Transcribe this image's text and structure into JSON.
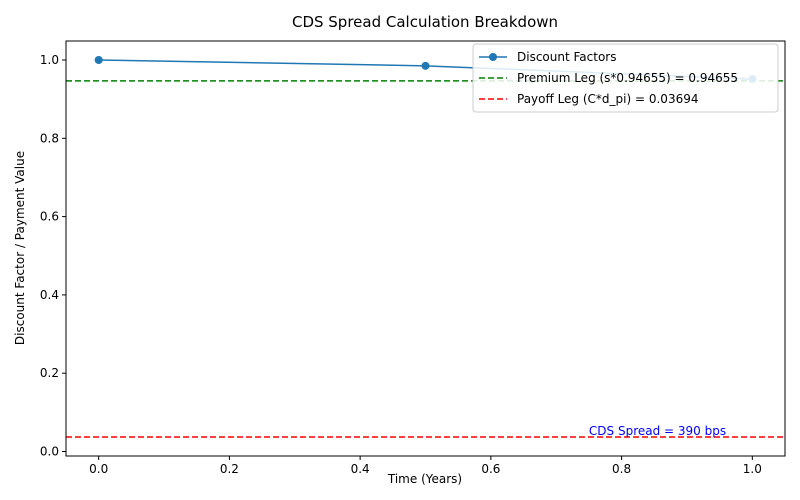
{
  "chart_data": {
    "type": "line",
    "title": "CDS Spread Calculation Breakdown",
    "xlabel": "Time (Years)",
    "ylabel": "Discount Factor / Payment Value",
    "xlim": [
      -0.05,
      1.05
    ],
    "ylim": [
      -0.0115,
      1.0485
    ],
    "xticks": [
      "0.0",
      "0.2",
      "0.4",
      "0.6",
      "0.8",
      "1.0"
    ],
    "xtick_values": [
      0.0,
      0.2,
      0.4,
      0.6,
      0.8,
      1.0
    ],
    "yticks": [
      "0.0",
      "0.2",
      "0.4",
      "0.6",
      "0.8",
      "1.0"
    ],
    "ytick_values": [
      0.0,
      0.2,
      0.4,
      0.6,
      0.8,
      1.0
    ],
    "grid": false,
    "legend_position": "top-right",
    "series": [
      {
        "name": "Discount Factors",
        "style": "line-marker",
        "color": "#1f77b4",
        "x": [
          0.0,
          0.5,
          1.0
        ],
        "y": [
          1.0,
          0.9851,
          0.9512
        ]
      }
    ],
    "hlines": [
      {
        "name": "Premium Leg (s*0.94655) = 0.94655",
        "y": 0.94655,
        "color": "#008000",
        "style": "dashed"
      },
      {
        "name": "Payoff Leg (C*d_pi) = 0.03694",
        "y": 0.03694,
        "color": "#ff0000",
        "style": "dashed"
      }
    ],
    "annotations": [
      {
        "text": "CDS Spread = 390 bps",
        "x": 0.75,
        "y": 0.037,
        "color": "#0000ff"
      }
    ]
  }
}
